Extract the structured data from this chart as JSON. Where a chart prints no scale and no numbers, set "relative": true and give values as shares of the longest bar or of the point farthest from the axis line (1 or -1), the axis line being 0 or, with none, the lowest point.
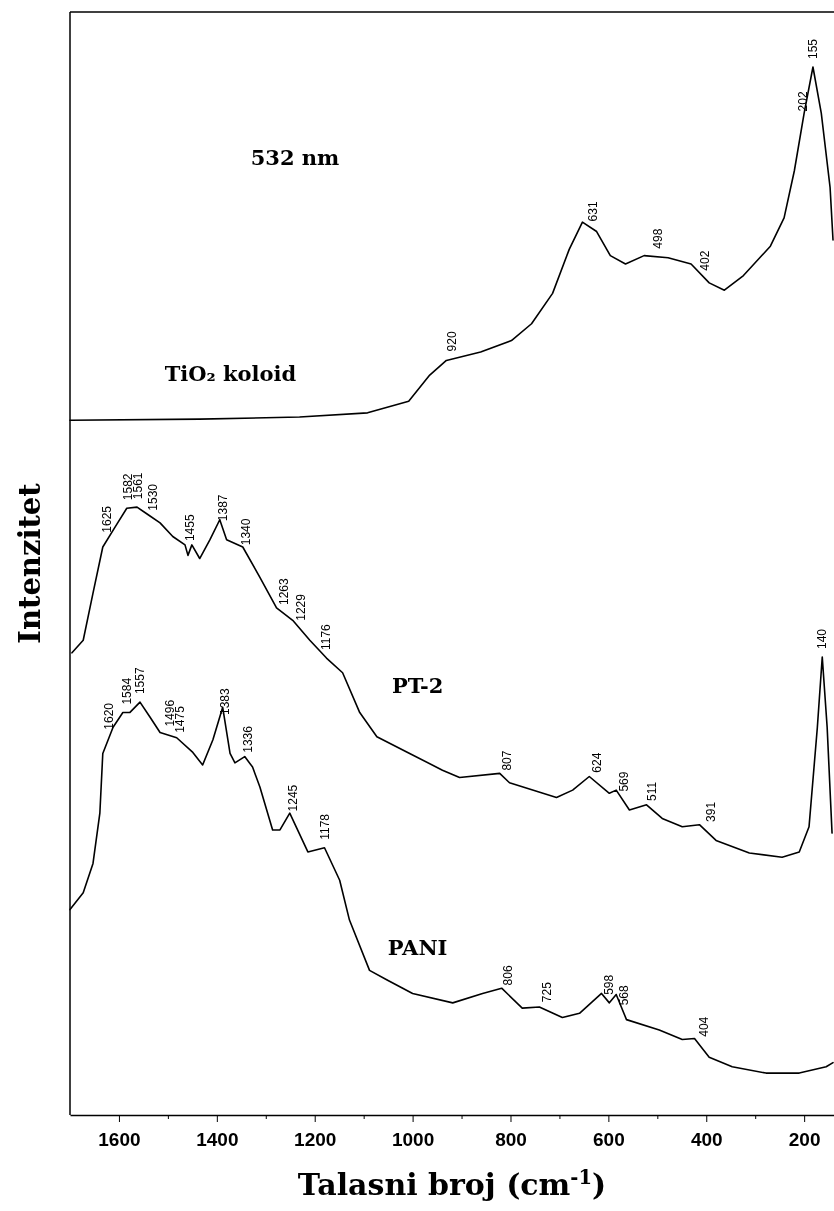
{
  "chart_data": {
    "type": "line",
    "relative": true,
    "xlabel": "Talasni broj (cm$^{-1}$)",
    "ylabel": "Intenzitet",
    "xlim": [
      1700,
      139
    ],
    "xticks": [
      1600,
      1400,
      1200,
      1000,
      800,
      600,
      400,
      200,
      {
        "value": 1500,
        "label": null
      },
      {
        "value": 1300,
        "label": null
      },
      {
        "value": 1100,
        "label": null
      },
      {
        "value": 900,
        "label": null
      },
      {
        "value": 700,
        "label": null
      },
      {
        "value": 500,
        "label": null
      },
      {
        "value": 300,
        "label": null
      }
    ],
    "series": [
      {
        "name": "TiO₂ koloid",
        "color": "#000000",
        "x": [
          1700,
          1435,
          1231,
          1092,
          1008,
          965,
          931,
          861,
          798,
          757,
          714,
          680,
          653,
          624,
          596,
          565,
          527,
          478,
          431,
          394,
          363,
          324,
          269,
          241,
          220,
          200,
          182,
          165,
          147,
          141
        ],
        "values": [
          0.663,
          0.664,
          0.666,
          0.67,
          0.681,
          0.706,
          0.72,
          0.728,
          0.739,
          0.755,
          0.784,
          0.826,
          0.852,
          0.843,
          0.82,
          0.812,
          0.82,
          0.818,
          0.812,
          0.794,
          0.787,
          0.801,
          0.829,
          0.856,
          0.901,
          0.956,
          1,
          0.956,
          0.885,
          0.835
        ]
      },
      {
        "name": "PT-2",
        "color": "#000000",
        "x": [
          1696,
          1673,
          1653,
          1633,
          1608,
          1584,
          1563,
          1541,
          1516,
          1490,
          1465,
          1459,
          1451,
          1435,
          1414,
          1394,
          1380,
          1347,
          1312,
          1278,
          1245,
          1210,
          1176,
          1143,
          1108,
          1073,
          1006,
          939,
          904,
          822,
          802,
          706,
          673,
          639,
          598,
          584,
          557,
          522,
          490,
          449,
          414,
          380,
          312,
          245,
          210,
          190,
          173,
          163,
          153,
          143
        ],
        "values": [
          0.441,
          0.453,
          0.498,
          0.542,
          0.561,
          0.579,
          0.58,
          0.573,
          0.565,
          0.552,
          0.544,
          0.534,
          0.544,
          0.531,
          0.549,
          0.568,
          0.549,
          0.542,
          0.513,
          0.484,
          0.472,
          0.453,
          0.436,
          0.422,
          0.384,
          0.361,
          0.345,
          0.329,
          0.322,
          0.326,
          0.317,
          0.303,
          0.31,
          0.323,
          0.307,
          0.31,
          0.291,
          0.296,
          0.283,
          0.275,
          0.277,
          0.262,
          0.25,
          0.246,
          0.251,
          0.275,
          0.37,
          0.437,
          0.37,
          0.269
        ]
      },
      {
        "name": "PANI",
        "color": "#000000",
        "x": [
          1700,
          1673,
          1653,
          1639,
          1633,
          1612,
          1592,
          1578,
          1557,
          1537,
          1516,
          1482,
          1449,
          1429,
          1408,
          1388,
          1373,
          1363,
          1343,
          1327,
          1312,
          1286,
          1271,
          1251,
          1214,
          1180,
          1149,
          1129,
          1088,
          1053,
          1000,
          918,
          857,
          818,
          776,
          741,
          694,
          659,
          614,
          598,
          584,
          563,
          496,
          449,
          424,
          394,
          347,
          278,
          210,
          155,
          141
        ],
        "values": [
          0.196,
          0.212,
          0.24,
          0.288,
          0.345,
          0.37,
          0.384,
          0.384,
          0.394,
          0.38,
          0.365,
          0.36,
          0.346,
          0.334,
          0.358,
          0.389,
          0.345,
          0.336,
          0.342,
          0.332,
          0.313,
          0.272,
          0.272,
          0.288,
          0.251,
          0.255,
          0.224,
          0.186,
          0.138,
          0.129,
          0.116,
          0.107,
          0.116,
          0.121,
          0.102,
          0.103,
          0.093,
          0.097,
          0.116,
          0.107,
          0.115,
          0.091,
          0.081,
          0.072,
          0.073,
          0.055,
          0.046,
          0.04,
          0.04,
          0.046,
          0.05
        ]
      }
    ],
    "annotations": [
      "532 nm",
      {
        "text": "920",
        "x": 920,
        "y": 0.721
      },
      {
        "text": "631",
        "x": 631,
        "y": 0.845
      },
      {
        "text": "498",
        "x": 498,
        "y": 0.819
      },
      {
        "text": "402",
        "x": 402,
        "y": 0.798
      },
      {
        "text": "202",
        "x": 202,
        "y": 0.95
      },
      {
        "text": "155",
        "x": 182,
        "y": 1
      },
      {
        "text": "1625",
        "x": 1625,
        "y": 0.548
      },
      {
        "text": "1582",
        "x": 1582,
        "y": 0.579
      },
      {
        "text": "1561",
        "x": 1561,
        "y": 0.58
      },
      {
        "text": "1530",
        "x": 1530,
        "y": 0.569
      },
      {
        "text": "1455",
        "x": 1455,
        "y": 0.54
      },
      {
        "text": "1387",
        "x": 1387,
        "y": 0.559
      },
      {
        "text": "1340",
        "x": 1340,
        "y": 0.536
      },
      {
        "text": "1263",
        "x": 1263,
        "y": 0.479
      },
      {
        "text": "1229",
        "x": 1229,
        "y": 0.464
      },
      {
        "text": "1176",
        "x": 1176,
        "y": 0.436
      },
      {
        "text": "807",
        "x": 807,
        "y": 0.321
      },
      {
        "text": "624",
        "x": 624,
        "y": 0.319
      },
      {
        "text": "569",
        "x": 569,
        "y": 0.301
      },
      {
        "text": "511",
        "x": 511,
        "y": 0.292
      },
      {
        "text": "391",
        "x": 391,
        "y": 0.272
      },
      {
        "text": "140",
        "x": 163,
        "y": 0.437
      },
      {
        "text": "1620",
        "x": 1620,
        "y": 0.36
      },
      {
        "text": "1584",
        "x": 1584,
        "y": 0.384
      },
      {
        "text": "1557",
        "x": 1557,
        "y": 0.394
      },
      {
        "text": "1496",
        "x": 1496,
        "y": 0.363
      },
      {
        "text": "1475",
        "x": 1475,
        "y": 0.357
      },
      {
        "text": "1383",
        "x": 1383,
        "y": 0.374
      },
      {
        "text": "1336",
        "x": 1336,
        "y": 0.338
      },
      {
        "text": "1245",
        "x": 1245,
        "y": 0.282
      },
      {
        "text": "1178",
        "x": 1178,
        "y": 0.255
      },
      {
        "text": "806",
        "x": 806,
        "y": 0.116
      },
      {
        "text": "725",
        "x": 725,
        "y": 0.1
      },
      {
        "text": "598",
        "x": 598,
        "y": 0.107
      },
      {
        "text": "568",
        "x": 568,
        "y": 0.097
      },
      {
        "text": "404",
        "x": 404,
        "y": 0.067
      }
    ]
  }
}
